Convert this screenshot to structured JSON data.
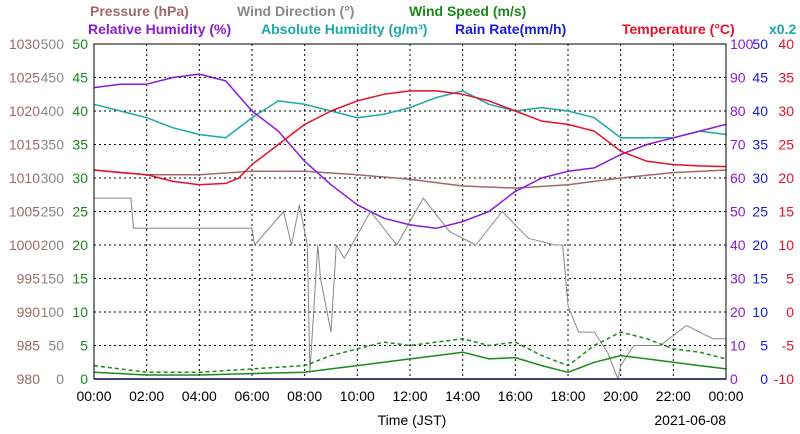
{
  "header": {
    "row1": [
      {
        "text": "Pressure (hPa)",
        "color": "#a06868"
      },
      {
        "text": "Wind Direction (°)",
        "color": "#888888"
      },
      {
        "text": "Wind Speed (m/s)",
        "color": "#1a8a1a"
      }
    ],
    "row2": [
      {
        "text": "Relative Humidity (%)",
        "color": "#8a1ad8"
      },
      {
        "text": "Absolute Humidity (g/m³)",
        "color": "#1aa8a8"
      },
      {
        "text": "Rain Rate(mm/h)",
        "color": "#1a1ad8"
      },
      {
        "text": "Temperature (°C)",
        "color": "#e8102a"
      },
      {
        "text": "x0.2",
        "color": "#1aa8a8"
      }
    ]
  },
  "footer": {
    "xlabel": "Time (JST)",
    "date": "2021-06-08"
  },
  "chart_data": {
    "type": "line",
    "x_unit": "hour (JST)",
    "xlim": [
      0,
      24
    ],
    "x_ticks": [
      "00:00",
      "02:00",
      "04:00",
      "06:00",
      "08:00",
      "10:00",
      "12:00",
      "14:00",
      "16:00",
      "18:00",
      "20:00",
      "22:00",
      "00:00"
    ],
    "grid": true,
    "axes": {
      "pressure": {
        "ticks": [
          "1030",
          "1025",
          "1020",
          "1015",
          "1010",
          "1005",
          "1000",
          "995",
          "990",
          "985",
          "980"
        ],
        "ylim": [
          980,
          1030
        ],
        "color": "#a06868",
        "side": "left"
      },
      "wind_direction": {
        "ticks": [
          "500",
          "450",
          "400",
          "350",
          "300",
          "250",
          "200",
          "150",
          "100",
          "50",
          "0"
        ],
        "ylim": [
          0,
          500
        ],
        "color": "#888888",
        "side": "left"
      },
      "wind_speed": {
        "ticks": [
          "50",
          "45",
          "40",
          "35",
          "30",
          "25",
          "20",
          "15",
          "10",
          "5",
          "0"
        ],
        "ylim": [
          0,
          50
        ],
        "color": "#1a8a1a",
        "side": "left"
      },
      "relative_humidity": {
        "ticks": [
          "100",
          "90",
          "80",
          "70",
          "60",
          "50",
          "40",
          "30",
          "20",
          "10",
          "0"
        ],
        "ylim": [
          0,
          100
        ],
        "color": "#8a1ad8",
        "side": "right"
      },
      "rain_rate": {
        "ticks": [
          "50",
          "45",
          "40",
          "35",
          "30",
          "25",
          "20",
          "15",
          "10",
          "5",
          "0"
        ],
        "ylim": [
          0,
          50
        ],
        "color": "#1a1ad8",
        "side": "right"
      },
      "temperature": {
        "ticks": [
          "40",
          "35",
          "30",
          "25",
          "20",
          "15",
          "10",
          "5",
          "0",
          "-5",
          "-10"
        ],
        "ylim": [
          -10,
          40
        ],
        "color": "#e8102a",
        "side": "right"
      }
    },
    "series": [
      {
        "name": "Pressure (hPa)",
        "axis": "pressure",
        "color": "#a06868",
        "x": [
          0,
          2,
          4,
          6,
          8,
          10,
          12,
          14,
          16,
          18,
          20,
          22,
          24
        ],
        "y": [
          1011.2,
          1010.5,
          1010.5,
          1011.0,
          1011.0,
          1010.5,
          1009.8,
          1008.8,
          1008.5,
          1009.0,
          1010.0,
          1010.8,
          1011.2
        ]
      },
      {
        "name": "Wind Direction (°)",
        "axis": "wind_direction",
        "color": "#888888",
        "x": [
          0,
          0.2,
          1.4,
          1.5,
          6.0,
          6.1,
          7.2,
          7.5,
          7.8,
          8.1,
          8.2,
          8.5,
          8.6,
          9.0,
          9.2,
          9.5,
          10.5,
          11.5,
          12.5,
          13.5,
          14.5,
          15.5,
          16.5,
          17.5,
          17.8,
          18.0,
          18.4,
          19.0,
          19.5,
          19.9,
          20.0,
          20.5,
          21.5,
          22.5,
          23.5,
          24
        ],
        "y": [
          270,
          270,
          270,
          225,
          225,
          200,
          250,
          200,
          260,
          200,
          10,
          200,
          150,
          70,
          200,
          180,
          250,
          200,
          270,
          220,
          200,
          250,
          210,
          200,
          200,
          110,
          70,
          70,
          40,
          0,
          20,
          50,
          50,
          80,
          60,
          60
        ]
      },
      {
        "name": "Wind Speed (m/s)",
        "axis": "wind_speed",
        "color": "#1a8a1a",
        "x": [
          0,
          2,
          4,
          6,
          8,
          9,
          10,
          11,
          12,
          13,
          14,
          15,
          16,
          17,
          18,
          19,
          20,
          21,
          22,
          23,
          24
        ],
        "y": [
          1.0,
          0.6,
          0.6,
          0.8,
          1.0,
          1.5,
          2.0,
          2.5,
          3.0,
          3.5,
          4.0,
          3.0,
          3.2,
          2.0,
          1.0,
          2.5,
          3.5,
          3.0,
          2.5,
          2.0,
          1.5
        ]
      },
      {
        "name": "Wind Speed gust (m/s)",
        "axis": "wind_speed",
        "color": "#1a8a1a",
        "dashed": true,
        "x": [
          0,
          2,
          4,
          6,
          8,
          9,
          10,
          11,
          12,
          13,
          14,
          15,
          16,
          17,
          18,
          19,
          20,
          21,
          22,
          23,
          24
        ],
        "y": [
          2.0,
          1.0,
          1.0,
          1.5,
          2.0,
          3.5,
          4.5,
          5.5,
          5.0,
          5.5,
          6.0,
          5.0,
          5.5,
          3.5,
          2.0,
          5.0,
          7.0,
          6.0,
          4.5,
          4.0,
          3.0
        ]
      },
      {
        "name": "Relative Humidity (%)",
        "axis": "relative_humidity",
        "color": "#8a1ad8",
        "x": [
          0,
          1,
          2,
          3,
          4,
          5,
          6,
          7,
          8,
          9,
          10,
          11,
          12,
          13,
          14,
          15,
          16,
          17,
          18,
          19,
          20,
          21,
          22,
          23,
          24
        ],
        "y": [
          87,
          88,
          88,
          90,
          91,
          89,
          80,
          74,
          65,
          58,
          52,
          48,
          46,
          45,
          47,
          50,
          56,
          60,
          62,
          63,
          67,
          70,
          72,
          74,
          76
        ]
      },
      {
        "name": "Absolute Humidity x0.2 (g/m³)",
        "axis": "relative_humidity",
        "color": "#1aa8a8",
        "x": [
          0,
          1,
          2,
          3,
          4,
          5,
          6,
          7,
          8,
          9,
          10,
          11,
          12,
          13,
          14,
          15,
          16,
          17,
          18,
          19,
          20,
          21,
          22,
          23,
          24
        ],
        "y": [
          82,
          80,
          78,
          75,
          73,
          72,
          78,
          83,
          82,
          80,
          78,
          79,
          81,
          84,
          86,
          82,
          80,
          81,
          80,
          78,
          72,
          72,
          72,
          74,
          73
        ]
      },
      {
        "name": "Rain Rate(mm/h)",
        "axis": "rain_rate",
        "color": "#1a1ad8",
        "x": [
          0,
          24
        ],
        "y": [
          0,
          0
        ]
      },
      {
        "name": "Temperature (°C)",
        "axis": "temperature",
        "color": "#e8102a",
        "x": [
          0,
          1,
          2,
          3,
          4,
          5,
          5.5,
          6,
          7,
          8,
          9,
          10,
          11,
          12,
          13,
          14,
          15,
          16,
          17,
          18,
          19,
          20,
          21,
          22,
          23,
          24
        ],
        "y": [
          21.2,
          20.8,
          20.5,
          19.5,
          19.0,
          19.2,
          20.0,
          22.0,
          25.0,
          28.0,
          30.0,
          31.5,
          32.5,
          33.0,
          33.0,
          32.5,
          31.5,
          30.0,
          28.5,
          28.0,
          27.0,
          24.0,
          22.5,
          22.0,
          21.8,
          21.7
        ]
      }
    ]
  }
}
